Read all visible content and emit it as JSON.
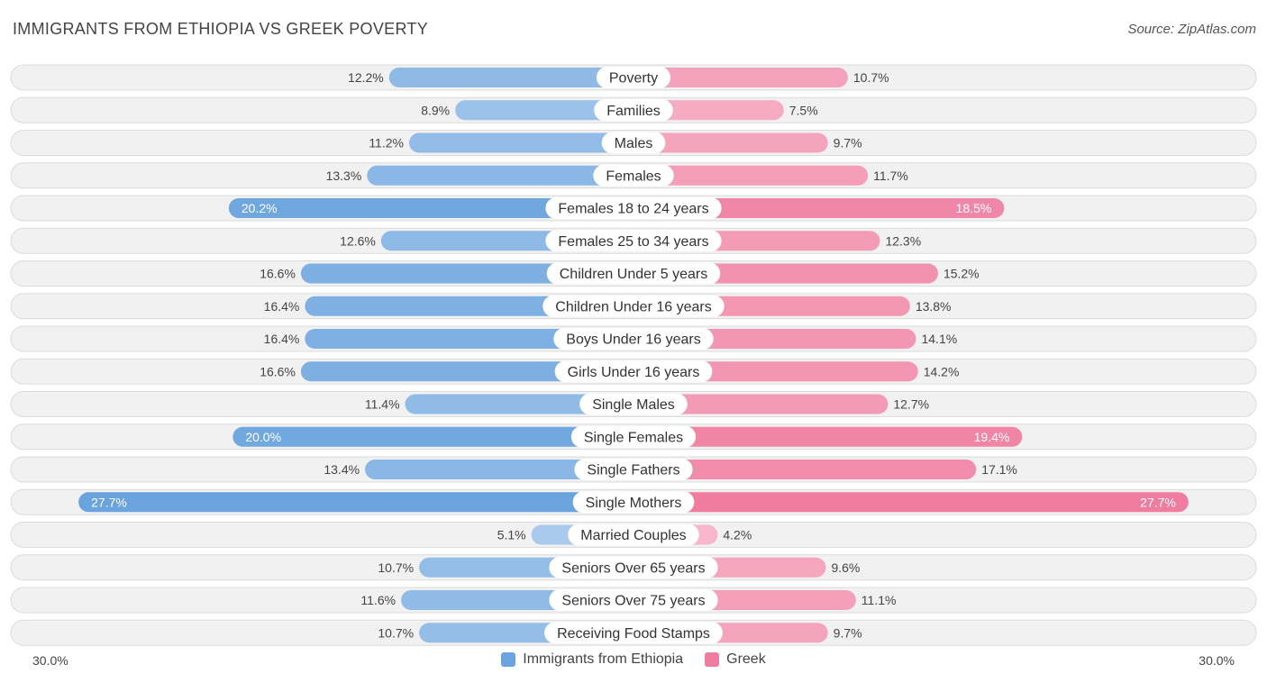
{
  "header": {
    "title": "IMMIGRANTS FROM ETHIOPIA VS GREEK POVERTY",
    "source": "Source: ZipAtlas.com"
  },
  "colors": {
    "left_bar": "#6aa3de",
    "right_bar": "#f07ca0",
    "track": "#f1f1f1",
    "track_border": "#dcdcdc"
  },
  "axis": {
    "left_label": "30.0%",
    "right_label": "30.0%"
  },
  "legend": {
    "left": "Immigrants from Ethiopia",
    "right": "Greek"
  },
  "chart_data": {
    "type": "bar",
    "orientation": "diverging-horizontal",
    "title": "IMMIGRANTS FROM ETHIOPIA VS GREEK POVERTY",
    "xlim": [
      0,
      30
    ],
    "categories": [
      "Poverty",
      "Families",
      "Males",
      "Females",
      "Females 18 to 24 years",
      "Females 25 to 34 years",
      "Children Under 5 years",
      "Children Under 16 years",
      "Boys Under 16 years",
      "Girls Under 16 years",
      "Single Males",
      "Single Females",
      "Single Fathers",
      "Single Mothers",
      "Married Couples",
      "Seniors Over 65 years",
      "Seniors Over 75 years",
      "Receiving Food Stamps"
    ],
    "series": [
      {
        "name": "Immigrants from Ethiopia",
        "values": [
          12.2,
          8.9,
          11.2,
          13.3,
          20.2,
          12.6,
          16.6,
          16.4,
          16.4,
          16.6,
          11.4,
          20.0,
          13.4,
          27.7,
          5.1,
          10.7,
          11.6,
          10.7
        ],
        "labels": [
          "12.2%",
          "8.9%",
          "11.2%",
          "13.3%",
          "20.2%",
          "12.6%",
          "16.6%",
          "16.4%",
          "16.4%",
          "16.6%",
          "11.4%",
          "20.0%",
          "13.4%",
          "27.7%",
          "5.1%",
          "10.7%",
          "11.6%",
          "10.7%"
        ]
      },
      {
        "name": "Greek",
        "values": [
          10.7,
          7.5,
          9.7,
          11.7,
          18.5,
          12.3,
          15.2,
          13.8,
          14.1,
          14.2,
          12.7,
          19.4,
          17.1,
          27.7,
          4.2,
          9.6,
          11.1,
          9.7
        ],
        "labels": [
          "10.7%",
          "7.5%",
          "9.7%",
          "11.7%",
          "18.5%",
          "12.3%",
          "15.2%",
          "13.8%",
          "14.1%",
          "14.2%",
          "12.7%",
          "19.4%",
          "17.1%",
          "27.7%",
          "4.2%",
          "9.6%",
          "11.1%",
          "9.7%"
        ]
      }
    ]
  }
}
